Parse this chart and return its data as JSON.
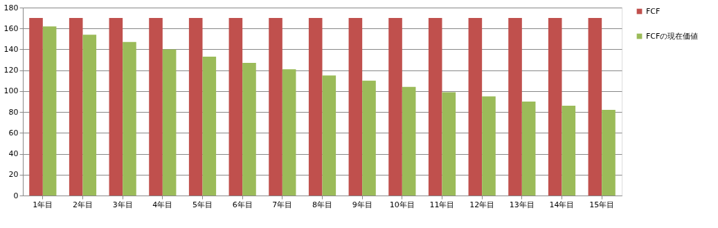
{
  "chart_data": {
    "type": "bar",
    "categories": [
      "1年目",
      "2年目",
      "3年目",
      "4年目",
      "5年目",
      "6年目",
      "7年目",
      "8年目",
      "9年目",
      "10年目",
      "11年目",
      "12年目",
      "13年目",
      "14年目",
      "15年目"
    ],
    "series": [
      {
        "name": "FCF",
        "color": "#c0504d",
        "values": [
          170,
          170,
          170,
          170,
          170,
          170,
          170,
          170,
          170,
          170,
          170,
          170,
          170,
          170,
          170
        ]
      },
      {
        "name": "FCFの現在価値",
        "color": "#9bbb59",
        "values": [
          162,
          154,
          147,
          140,
          133,
          127,
          121,
          115,
          110,
          104,
          99,
          95,
          90,
          86,
          82
        ]
      }
    ],
    "ylim": [
      0,
      180
    ],
    "yticks": [
      0,
      20,
      40,
      60,
      80,
      100,
      120,
      140,
      160,
      180
    ],
    "grid": "y",
    "legend": "right"
  }
}
